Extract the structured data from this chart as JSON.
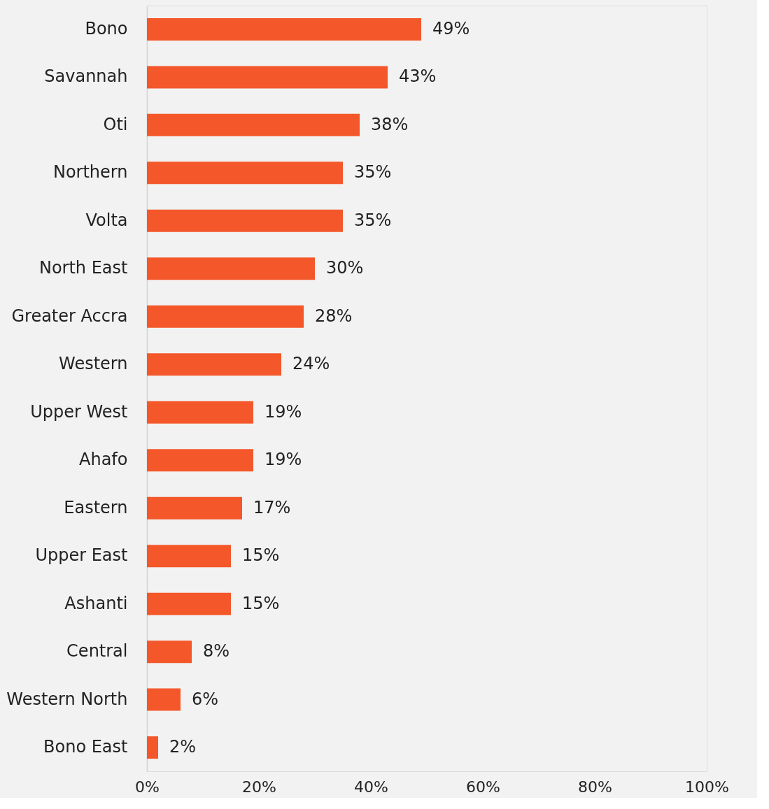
{
  "chart_data": {
    "type": "bar",
    "orientation": "horizontal",
    "categories": [
      "Bono",
      "Savannah",
      "Oti",
      "Northern",
      "Volta",
      "North East",
      "Greater Accra",
      "Western",
      "Upper West",
      "Ahafo",
      "Eastern",
      "Upper East",
      "Ashanti",
      "Central",
      "Western North",
      "Bono East"
    ],
    "values": [
      49,
      43,
      38,
      35,
      35,
      30,
      28,
      24,
      19,
      19,
      17,
      15,
      15,
      8,
      6,
      2
    ],
    "value_labels": [
      "49%",
      "43%",
      "38%",
      "35%",
      "35%",
      "30%",
      "28%",
      "24%",
      "19%",
      "19%",
      "17%",
      "15%",
      "15%",
      "8%",
      "6%",
      "2%"
    ],
    "color": "#f4572a",
    "xlim": [
      0,
      100
    ],
    "xticks": [
      {
        "value": 0,
        "label": "0%"
      },
      {
        "value": 20,
        "label": "20%"
      },
      {
        "value": 40,
        "label": "40%"
      },
      {
        "value": 60,
        "label": "60%"
      },
      {
        "value": 80,
        "label": "80%"
      },
      {
        "value": 100,
        "label": "100%"
      }
    ],
    "grid": false
  }
}
